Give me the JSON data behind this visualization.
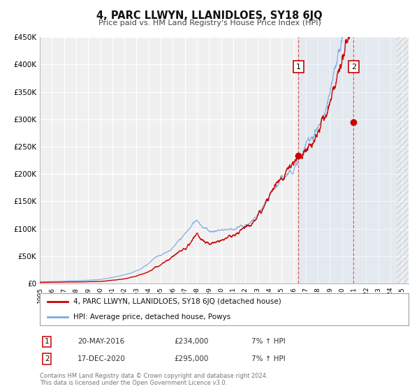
{
  "title": "4, PARC LLWYN, LLANIDLOES, SY18 6JQ",
  "subtitle": "Price paid vs. HM Land Registry's House Price Index (HPI)",
  "legend_line1": "4, PARC LLWYN, LLANIDLOES, SY18 6JQ (detached house)",
  "legend_line2": "HPI: Average price, detached house, Powys",
  "transaction1_date": "20-MAY-2016",
  "transaction1_price": "£234,000",
  "transaction1_hpi": "7% ↑ HPI",
  "transaction2_date": "17-DEC-2020",
  "transaction2_price": "£295,000",
  "transaction2_hpi": "7% ↑ HPI",
  "footer1": "Contains HM Land Registry data © Crown copyright and database right 2024.",
  "footer2": "This data is licensed under the Open Government Licence v3.0.",
  "red_color": "#cc0000",
  "blue_color": "#7aaadd",
  "bg_color": "#ffffff",
  "plot_bg_color": "#f0f0f0",
  "grid_color": "#ffffff",
  "ylim": [
    0,
    450000
  ],
  "yticks": [
    0,
    50000,
    100000,
    150000,
    200000,
    250000,
    300000,
    350000,
    400000,
    450000
  ],
  "xlim_start": 1995.0,
  "xlim_end": 2025.5,
  "transaction1_x": 2016.38,
  "transaction1_y": 234000,
  "transaction2_x": 2020.96,
  "transaction2_y": 295000,
  "hatch_start": 2024.5
}
